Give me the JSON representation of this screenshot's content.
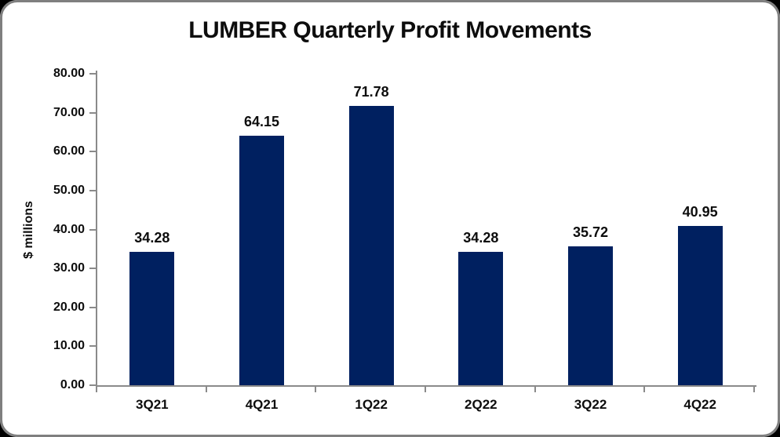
{
  "window": {
    "background_color": "#000000",
    "frame_border_color": "#7f7f7f",
    "frame_background_color": "#ffffff"
  },
  "chart_data": {
    "type": "bar",
    "title": "LUMBER Quarterly Profit Movements",
    "xlabel": "",
    "ylabel": "$ millions",
    "categories": [
      "3Q21",
      "4Q21",
      "1Q22",
      "2Q22",
      "3Q22",
      "4Q22"
    ],
    "values": [
      34.28,
      64.15,
      71.78,
      34.28,
      35.72,
      40.95
    ],
    "data_labels": [
      "34.28",
      "64.15",
      "71.78",
      "34.28",
      "35.72",
      "40.95"
    ],
    "ylim": [
      0,
      80
    ],
    "ytick_step": 10,
    "ytick_labels": [
      "0.00",
      "10.00",
      "20.00",
      "30.00",
      "40.00",
      "50.00",
      "60.00",
      "70.00",
      "80.00"
    ],
    "grid": false,
    "legend_position": "none",
    "colors": {
      "bar": "#002060",
      "axis": "#8a8a8a",
      "text": "#0d0d0d"
    }
  }
}
